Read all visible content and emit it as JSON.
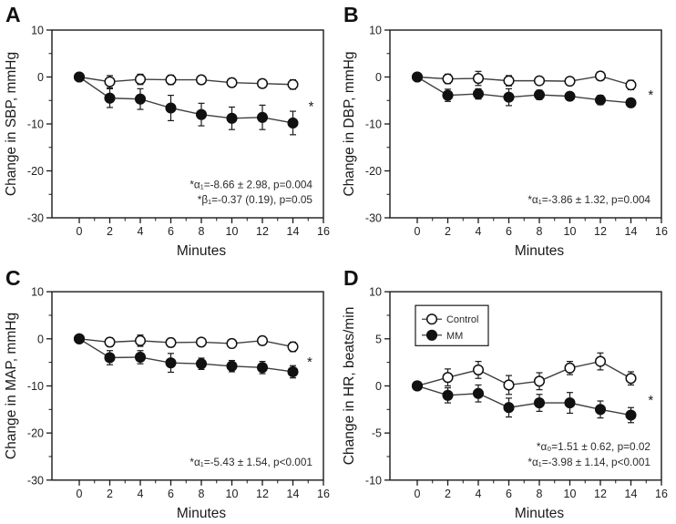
{
  "figure": {
    "background": "#ffffff",
    "axis_color": "#1a1a1a",
    "series_line_color": "#3f3f3f",
    "control_marker_fill": "#ffffff",
    "mm_marker_fill": "#111111"
  },
  "chart_data": [
    {
      "type": "line",
      "panel_label": "A",
      "xlabel": "Minutes",
      "ylabel": "Change in SBP, mmHg",
      "x": [
        0,
        2,
        4,
        6,
        8,
        10,
        12,
        14
      ],
      "xticks": [
        0,
        2,
        4,
        6,
        8,
        10,
        12,
        14,
        16
      ],
      "yticks": [
        10,
        0,
        -10,
        -20,
        -30
      ],
      "ylim": [
        -30,
        10
      ],
      "grid": false,
      "series": [
        {
          "name": "Control",
          "marker": "open-circle",
          "values": [
            0,
            -1.0,
            -0.5,
            -0.6,
            -0.6,
            -1.2,
            -1.4,
            -1.6
          ],
          "errors": [
            0,
            1.3,
            1.1,
            1.0,
            0.9,
            0.9,
            0.9,
            1.0
          ]
        },
        {
          "name": "MM",
          "marker": "filled-circle",
          "values": [
            0,
            -4.5,
            -4.7,
            -6.6,
            -8.0,
            -8.8,
            -8.6,
            -9.8
          ],
          "errors": [
            0,
            2.0,
            2.2,
            2.7,
            2.4,
            2.4,
            2.6,
            2.5
          ]
        }
      ],
      "annotations": [
        "*α₁=-8.66 ± 2.98, p=0.004",
        "*β₁=-0.37 (0.19), p=0.05"
      ],
      "star": {
        "x": 15.2,
        "y": -5.6
      },
      "legend": null
    },
    {
      "type": "line",
      "panel_label": "B",
      "xlabel": "Minutes",
      "ylabel": "Change in DBP, mmHg",
      "x": [
        0,
        2,
        4,
        6,
        8,
        10,
        12,
        14
      ],
      "xticks": [
        0,
        2,
        4,
        6,
        8,
        10,
        12,
        14,
        16
      ],
      "yticks": [
        10,
        0,
        -10,
        -20,
        -30
      ],
      "ylim": [
        -30,
        10
      ],
      "grid": false,
      "series": [
        {
          "name": "Control",
          "marker": "open-circle",
          "values": [
            0,
            -0.4,
            -0.3,
            -0.8,
            -0.8,
            -0.9,
            0.2,
            -1.7
          ],
          "errors": [
            0,
            1.0,
            1.5,
            1.1,
            0.8,
            0.8,
            0.9,
            1.0
          ]
        },
        {
          "name": "MM",
          "marker": "filled-circle",
          "values": [
            0,
            -3.9,
            -3.6,
            -4.3,
            -3.8,
            -4.1,
            -4.9,
            -5.5
          ],
          "errors": [
            0,
            1.3,
            1.1,
            1.8,
            1.0,
            0.8,
            1.0,
            0.9
          ]
        }
      ],
      "annotations": [
        "*α₁=-3.86 ± 1.32, p=0.004"
      ],
      "star": {
        "x": 15.3,
        "y": -3.2
      },
      "legend": null
    },
    {
      "type": "line",
      "panel_label": "C",
      "xlabel": "Minutes",
      "ylabel": "Change in MAP, mmHg",
      "x": [
        0,
        2,
        4,
        6,
        8,
        10,
        12,
        14
      ],
      "xticks": [
        0,
        2,
        4,
        6,
        8,
        10,
        12,
        14,
        16
      ],
      "yticks": [
        10,
        0,
        -10,
        -20,
        -30
      ],
      "ylim": [
        -30,
        10
      ],
      "grid": false,
      "series": [
        {
          "name": "Control",
          "marker": "open-circle",
          "values": [
            0,
            -0.7,
            -0.4,
            -0.8,
            -0.7,
            -1.0,
            -0.4,
            -1.7
          ],
          "errors": [
            0,
            0.9,
            1.2,
            0.9,
            0.8,
            0.9,
            0.9,
            1.0
          ]
        },
        {
          "name": "MM",
          "marker": "filled-circle",
          "values": [
            0,
            -4.0,
            -3.9,
            -5.1,
            -5.3,
            -5.8,
            -6.1,
            -7.0
          ],
          "errors": [
            0,
            1.5,
            1.4,
            2.0,
            1.2,
            1.2,
            1.3,
            1.3
          ]
        }
      ],
      "annotations": [
        "*α₁=-5.43 ± 1.54, p<0.001"
      ],
      "star": {
        "x": 15.1,
        "y": -4.3
      },
      "legend": null
    },
    {
      "type": "line",
      "panel_label": "D",
      "xlabel": "Minutes",
      "ylabel": "Change in HR, beats/min",
      "x": [
        0,
        2,
        4,
        6,
        8,
        10,
        12,
        14
      ],
      "xticks": [
        0,
        2,
        4,
        6,
        8,
        10,
        12,
        14,
        16
      ],
      "yticks": [
        10,
        5,
        0,
        -5,
        -10
      ],
      "ylim": [
        -10,
        10
      ],
      "grid": false,
      "series": [
        {
          "name": "Control",
          "marker": "open-circle",
          "values": [
            0,
            0.9,
            1.7,
            0.1,
            0.5,
            1.9,
            2.6,
            0.8
          ],
          "errors": [
            0,
            0.9,
            0.9,
            1.0,
            0.9,
            0.7,
            0.9,
            0.7
          ]
        },
        {
          "name": "MM",
          "marker": "filled-circle",
          "values": [
            0,
            -1.0,
            -0.8,
            -2.3,
            -1.8,
            -1.8,
            -2.5,
            -3.1
          ],
          "errors": [
            0,
            0.8,
            0.9,
            1.0,
            0.9,
            1.1,
            0.9,
            0.8
          ]
        }
      ],
      "annotations": [
        "*α₀=1.51 ± 0.62, p=0.02",
        "*α₁=-3.98 ± 1.14, p<0.001"
      ],
      "star": {
        "x": 15.3,
        "y": -1.2
      },
      "legend": {
        "position": "upper-left"
      }
    }
  ]
}
